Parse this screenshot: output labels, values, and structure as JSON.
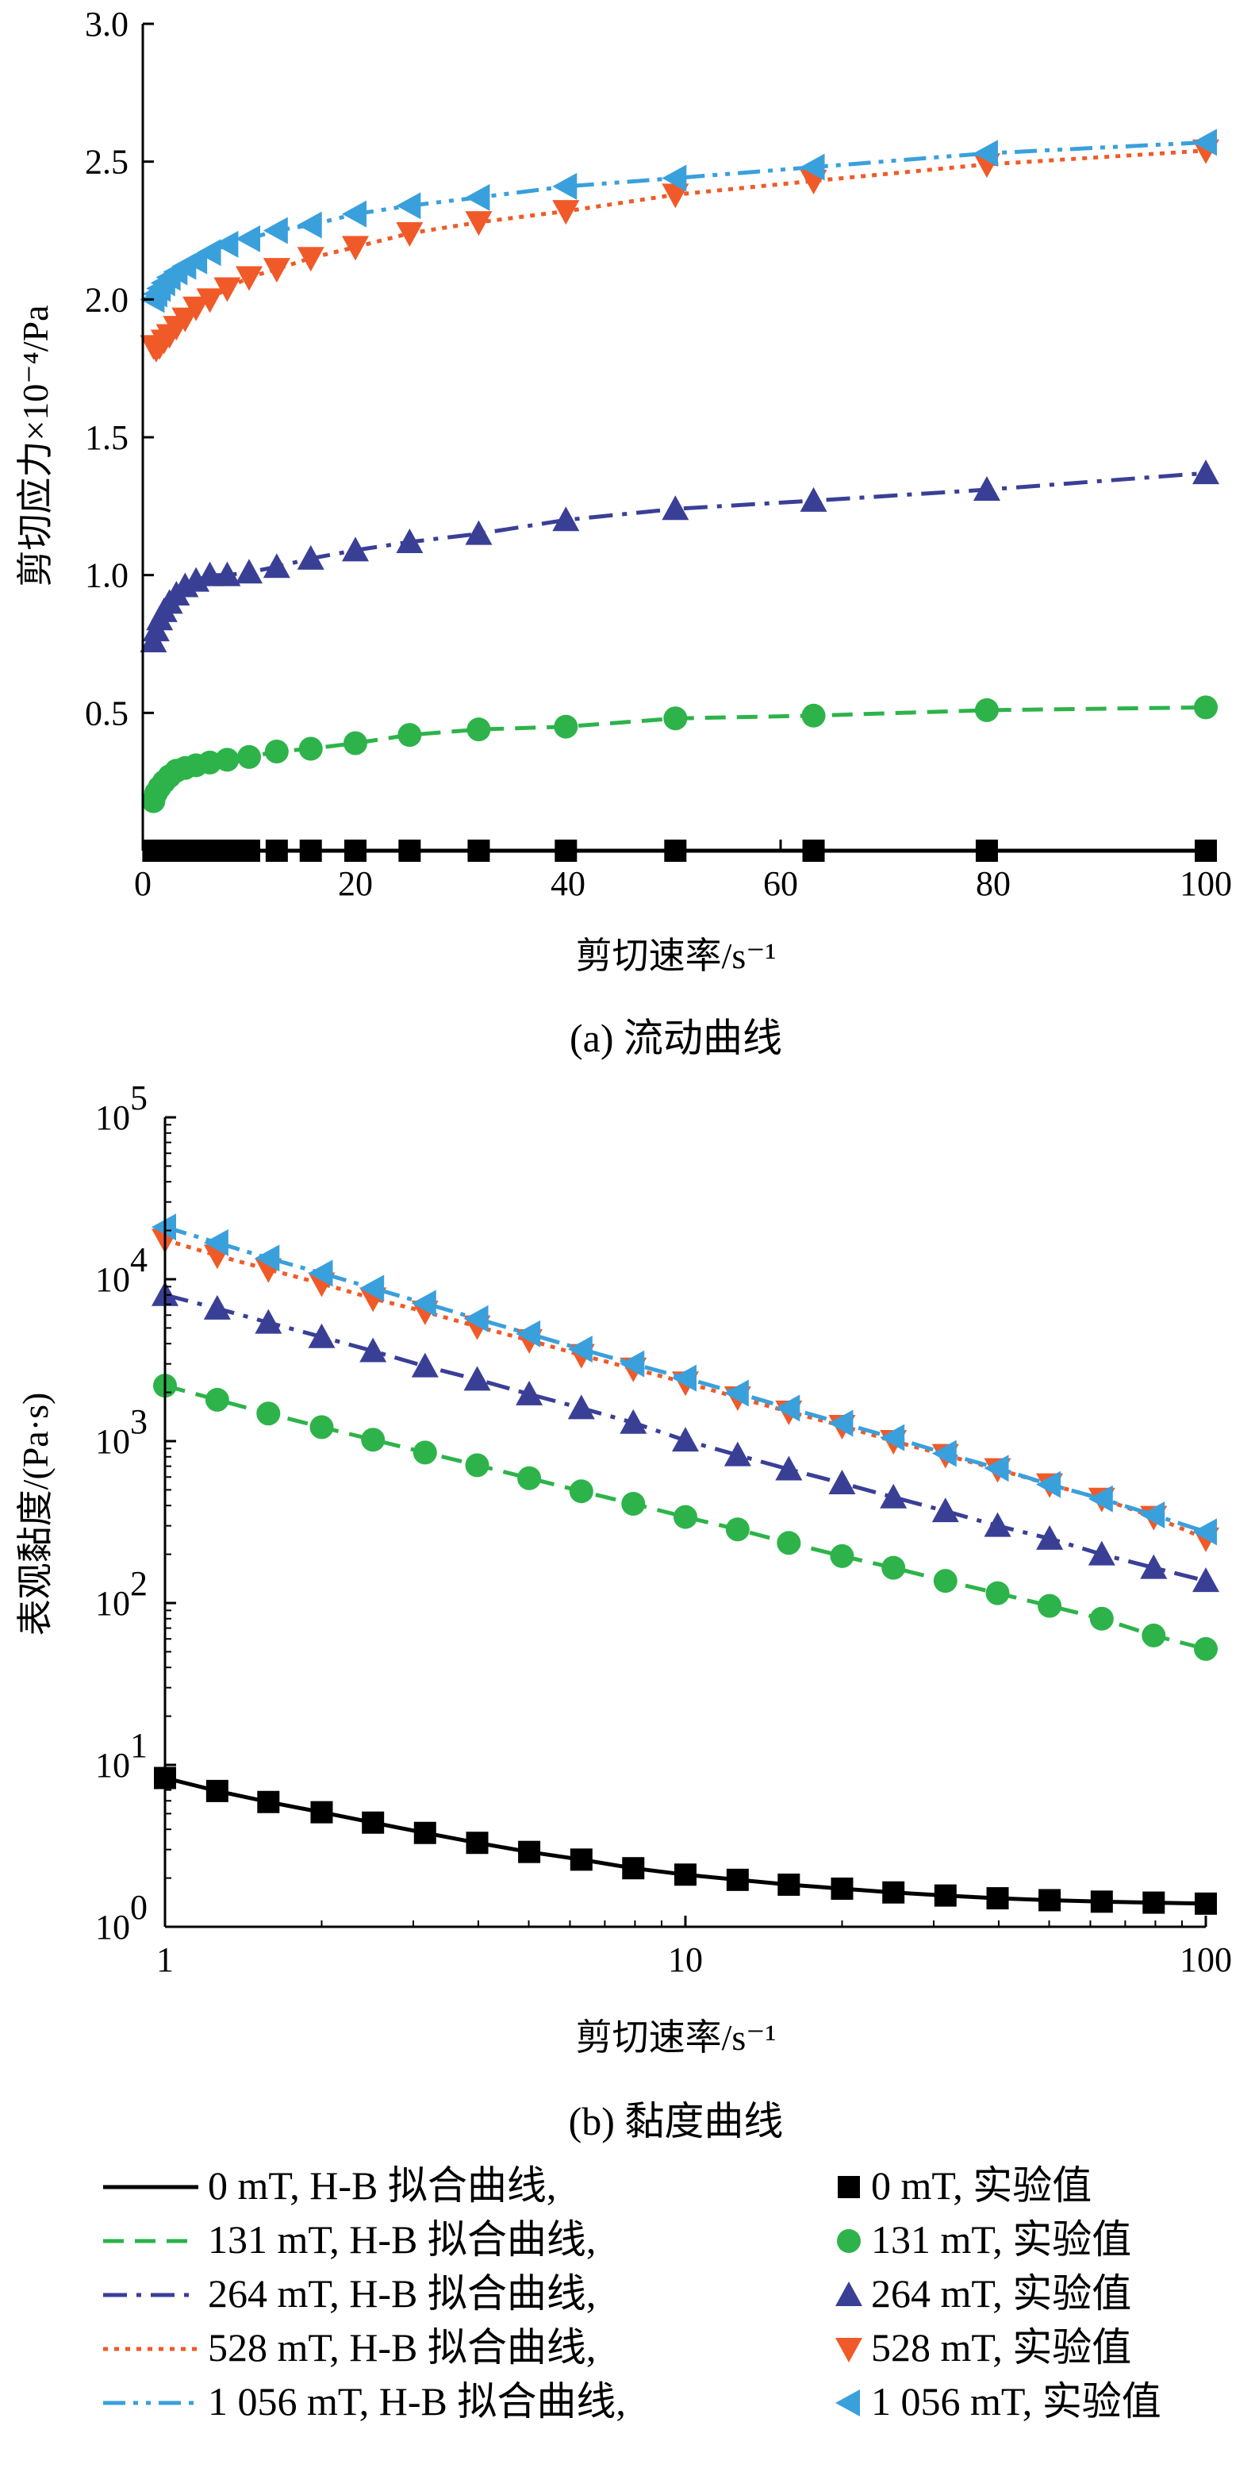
{
  "colors": {
    "0mT": "#000000",
    "131mT": "#2db34a",
    "264mT": "#3a3f96",
    "528mT": "#f05a28",
    "1056mT": "#3aa0dc"
  },
  "chart_data": [
    {
      "type": "line",
      "panel": "a",
      "caption": "(a)  流动曲线",
      "xlabel": "剪切速率/s⁻¹",
      "ylabel": "剪切应力×10⁻⁴/Pa",
      "xlim": [
        0,
        100
      ],
      "ylim": [
        0,
        3.0
      ],
      "xticks": [
        "0",
        "20",
        "40",
        "60",
        "80",
        "100"
      ],
      "yticks": [
        "0.5",
        "1.0",
        "1.5",
        "2.0",
        "2.5",
        "3.0"
      ],
      "grid": false,
      "series": [
        {
          "key": "0mT",
          "name": "0 mT",
          "points": [
            [
              1,
              0.0
            ],
            [
              1.26,
              0.0
            ],
            [
              1.58,
              0.0
            ],
            [
              2,
              0.0
            ],
            [
              2.51,
              0.0
            ],
            [
              3.16,
              0.0
            ],
            [
              3.98,
              0.0
            ],
            [
              5.01,
              0.0
            ],
            [
              6.31,
              0.0
            ],
            [
              7.94,
              0.0
            ],
            [
              10,
              0.0
            ],
            [
              12.6,
              0.0
            ],
            [
              15.8,
              0.0
            ],
            [
              20,
              0.0
            ],
            [
              25.1,
              0.0
            ],
            [
              31.6,
              0.0
            ],
            [
              39.8,
              0.0
            ],
            [
              50.1,
              0.0
            ],
            [
              63.1,
              0.0
            ],
            [
              79.4,
              0.0
            ],
            [
              100,
              0.0
            ]
          ]
        },
        {
          "key": "131mT",
          "name": "131 mT",
          "points": [
            [
              1,
              0.18
            ],
            [
              1.26,
              0.21
            ],
            [
              1.58,
              0.23
            ],
            [
              2,
              0.25
            ],
            [
              2.51,
              0.27
            ],
            [
              3.16,
              0.29
            ],
            [
              3.98,
              0.3
            ],
            [
              5.01,
              0.31
            ],
            [
              6.31,
              0.32
            ],
            [
              7.94,
              0.33
            ],
            [
              10,
              0.34
            ],
            [
              12.6,
              0.36
            ],
            [
              15.8,
              0.37
            ],
            [
              20,
              0.39
            ],
            [
              25.1,
              0.42
            ],
            [
              31.6,
              0.44
            ],
            [
              39.8,
              0.45
            ],
            [
              50.1,
              0.48
            ],
            [
              63.1,
              0.49
            ],
            [
              79.4,
              0.51
            ],
            [
              100,
              0.52
            ]
          ]
        },
        {
          "key": "264mT",
          "name": "264 mT",
          "points": [
            [
              1,
              0.76
            ],
            [
              1.26,
              0.8
            ],
            [
              1.58,
              0.84
            ],
            [
              2,
              0.87
            ],
            [
              2.51,
              0.9
            ],
            [
              3.16,
              0.93
            ],
            [
              3.98,
              0.96
            ],
            [
              5.01,
              0.98
            ],
            [
              6.31,
              1.0
            ],
            [
              7.94,
              1.0
            ],
            [
              10,
              1.01
            ],
            [
              12.6,
              1.03
            ],
            [
              15.8,
              1.06
            ],
            [
              20,
              1.09
            ],
            [
              25.1,
              1.12
            ],
            [
              31.6,
              1.15
            ],
            [
              39.8,
              1.2
            ],
            [
              50.1,
              1.24
            ],
            [
              63.1,
              1.27
            ],
            [
              79.4,
              1.31
            ],
            [
              100,
              1.37
            ]
          ]
        },
        {
          "key": "528mT",
          "name": "528 mT",
          "points": [
            [
              1,
              1.83
            ],
            [
              1.26,
              1.82
            ],
            [
              1.58,
              1.83
            ],
            [
              2,
              1.85
            ],
            [
              2.51,
              1.87
            ],
            [
              3.16,
              1.9
            ],
            [
              3.98,
              1.93
            ],
            [
              5.01,
              1.97
            ],
            [
              6.31,
              2.0
            ],
            [
              7.94,
              2.04
            ],
            [
              10,
              2.08
            ],
            [
              12.6,
              2.11
            ],
            [
              15.8,
              2.15
            ],
            [
              20,
              2.19
            ],
            [
              25.1,
              2.24
            ],
            [
              31.6,
              2.28
            ],
            [
              39.8,
              2.32
            ],
            [
              50.1,
              2.38
            ],
            [
              63.1,
              2.43
            ],
            [
              79.4,
              2.49
            ],
            [
              100,
              2.54
            ]
          ]
        },
        {
          "key": "1056mT",
          "name": "1 056 mT",
          "points": [
            [
              1,
              2.0
            ],
            [
              1.26,
              2.02
            ],
            [
              1.58,
              2.04
            ],
            [
              2,
              2.06
            ],
            [
              2.51,
              2.08
            ],
            [
              3.16,
              2.1
            ],
            [
              3.98,
              2.12
            ],
            [
              5.01,
              2.14
            ],
            [
              6.31,
              2.17
            ],
            [
              7.94,
              2.2
            ],
            [
              10,
              2.22
            ],
            [
              12.6,
              2.25
            ],
            [
              15.8,
              2.27
            ],
            [
              20,
              2.31
            ],
            [
              25.1,
              2.34
            ],
            [
              31.6,
              2.37
            ],
            [
              39.8,
              2.41
            ],
            [
              50.1,
              2.44
            ],
            [
              63.1,
              2.48
            ],
            [
              79.4,
              2.53
            ],
            [
              100,
              2.57
            ]
          ]
        }
      ]
    },
    {
      "type": "line",
      "panel": "b",
      "caption": "(b)  黏度曲线",
      "xlabel": "剪切速率/s⁻¹",
      "ylabel": "表观黏度/(Pa·s)",
      "xscale": "log",
      "yscale": "log",
      "xlim": [
        1,
        100
      ],
      "ylim": [
        1,
        100000
      ],
      "xticks": [
        "1",
        "10",
        "100"
      ],
      "yticks": [
        {
          "base": "10",
          "exp": "0"
        },
        {
          "base": "10",
          "exp": "1"
        },
        {
          "base": "10",
          "exp": "2"
        },
        {
          "base": "10",
          "exp": "3"
        },
        {
          "base": "10",
          "exp": "4"
        },
        {
          "base": "10",
          "exp": "5"
        }
      ],
      "grid": false,
      "series": [
        {
          "key": "0mT",
          "name": "0 mT",
          "points": [
            [
              1,
              8.3
            ],
            [
              1.26,
              6.9
            ],
            [
              1.58,
              5.9
            ],
            [
              2,
              5.1
            ],
            [
              2.51,
              4.4
            ],
            [
              3.16,
              3.8
            ],
            [
              3.98,
              3.3
            ],
            [
              5.01,
              2.9
            ],
            [
              6.31,
              2.6
            ],
            [
              7.94,
              2.3
            ],
            [
              10,
              2.1
            ],
            [
              12.6,
              1.95
            ],
            [
              15.8,
              1.82
            ],
            [
              20,
              1.72
            ],
            [
              25.1,
              1.63
            ],
            [
              31.6,
              1.56
            ],
            [
              39.8,
              1.5
            ],
            [
              50.1,
              1.46
            ],
            [
              63.1,
              1.43
            ],
            [
              79.4,
              1.41
            ],
            [
              100,
              1.39
            ]
          ]
        },
        {
          "key": "131mT",
          "name": "131 mT",
          "points": [
            [
              1,
              2200
            ],
            [
              1.26,
              1800
            ],
            [
              1.58,
              1480
            ],
            [
              2,
              1220
            ],
            [
              2.51,
              1020
            ],
            [
              3.16,
              850
            ],
            [
              3.98,
              710
            ],
            [
              5.01,
              590
            ],
            [
              6.31,
              490
            ],
            [
              7.94,
              410
            ],
            [
              10,
              340
            ],
            [
              12.6,
              285
            ],
            [
              15.8,
              235
            ],
            [
              20,
              195
            ],
            [
              25.1,
              165
            ],
            [
              31.6,
              137
            ],
            [
              39.8,
              115
            ],
            [
              50.1,
              96
            ],
            [
              63.1,
              80
            ],
            [
              79.4,
              63
            ],
            [
              100,
              52
            ]
          ]
        },
        {
          "key": "264mT",
          "name": "264 mT",
          "points": [
            [
              1,
              8000
            ],
            [
              1.26,
              6600
            ],
            [
              1.58,
              5400
            ],
            [
              2,
              4400
            ],
            [
              2.51,
              3600
            ],
            [
              3.16,
              2900
            ],
            [
              3.98,
              2400
            ],
            [
              5.01,
              1950
            ],
            [
              6.31,
              1600
            ],
            [
              7.94,
              1300
            ],
            [
              10,
              1010
            ],
            [
              12.6,
              820
            ],
            [
              15.8,
              670
            ],
            [
              20,
              550
            ],
            [
              25.1,
              450
            ],
            [
              31.6,
              370
            ],
            [
              39.8,
              300
            ],
            [
              50.1,
              250
            ],
            [
              63.1,
              200
            ],
            [
              79.4,
              165
            ],
            [
              100,
              137
            ]
          ]
        },
        {
          "key": "528mT",
          "name": "528 mT",
          "points": [
            [
              1,
              17500
            ],
            [
              1.26,
              14000
            ],
            [
              1.58,
              11500
            ],
            [
              2,
              9400
            ],
            [
              2.51,
              7600
            ],
            [
              3.16,
              6300
            ],
            [
              3.98,
              5100
            ],
            [
              5.01,
              4200
            ],
            [
              6.31,
              3400
            ],
            [
              7.94,
              2800
            ],
            [
              10,
              2300
            ],
            [
              12.6,
              1860
            ],
            [
              15.8,
              1520
            ],
            [
              20,
              1240
            ],
            [
              25.1,
              1000
            ],
            [
              31.6,
              820
            ],
            [
              39.8,
              670
            ],
            [
              50.1,
              540
            ],
            [
              63.1,
              440
            ],
            [
              79.4,
              340
            ],
            [
              100,
              250
            ]
          ]
        },
        {
          "key": "1056mT",
          "name": "1 056 mT",
          "points": [
            [
              1,
              21000
            ],
            [
              1.26,
              16800
            ],
            [
              1.58,
              13500
            ],
            [
              2,
              10900
            ],
            [
              2.51,
              8800
            ],
            [
              3.16,
              7100
            ],
            [
              3.98,
              5700
            ],
            [
              5.01,
              4600
            ],
            [
              6.31,
              3700
            ],
            [
              7.94,
              3000
            ],
            [
              10,
              2450
            ],
            [
              12.6,
              1980
            ],
            [
              15.8,
              1600
            ],
            [
              20,
              1290
            ],
            [
              25.1,
              1050
            ],
            [
              31.6,
              840
            ],
            [
              39.8,
              680
            ],
            [
              50.1,
              540
            ],
            [
              63.1,
              440
            ],
            [
              79.4,
              350
            ],
            [
              100,
              275
            ]
          ]
        }
      ]
    }
  ],
  "legend": {
    "lines": [
      {
        "key": "0mT",
        "dash": "solid",
        "label": "0 mT, H-B 拟合曲线,"
      },
      {
        "key": "131mT",
        "dash": "dashed",
        "label": "131 mT, H-B 拟合曲线,"
      },
      {
        "key": "264mT",
        "dash": "dashdot",
        "label": "264 mT, H-B 拟合曲线,"
      },
      {
        "key": "528mT",
        "dash": "dotted",
        "label": "528 mT, H-B 拟合曲线,"
      },
      {
        "key": "1056mT",
        "dash": "dashdotdot",
        "label": "1 056 mT, H-B 拟合曲线,"
      }
    ],
    "markers": [
      {
        "key": "0mT",
        "marker": "square",
        "label": "0 mT, 实验值"
      },
      {
        "key": "131mT",
        "marker": "circle",
        "label": "131 mT, 实验值"
      },
      {
        "key": "264mT",
        "marker": "triangle-up",
        "label": "264 mT, 实验值"
      },
      {
        "key": "528mT",
        "marker": "triangle-down",
        "label": "528 mT, 实验值"
      },
      {
        "key": "1056mT",
        "marker": "triangle-left",
        "label": "1 056 mT, 实验值"
      }
    ]
  }
}
